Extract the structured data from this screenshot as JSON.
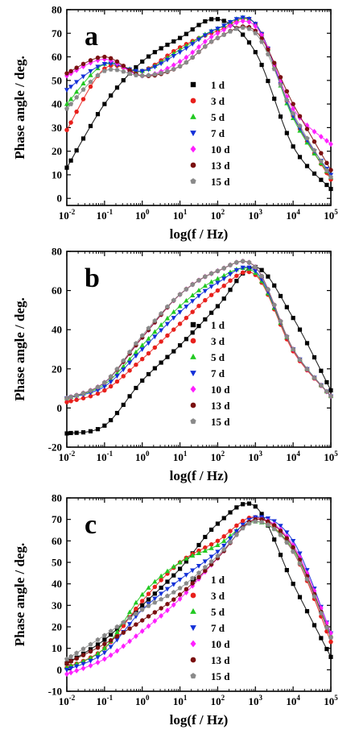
{
  "chart_data": [
    {
      "type": "scatter",
      "panel_label": "a",
      "xlabel": "log(f / Hz)",
      "ylabel": "Phase angle / deg.",
      "xscale": "log",
      "xlim": [
        0.01,
        100000
      ],
      "ylim": [
        -3,
        80
      ],
      "yticks": [
        0,
        10,
        20,
        30,
        40,
        50,
        60,
        70,
        80
      ],
      "xticks": [
        0.01,
        0.1,
        1,
        10,
        100,
        1000,
        10000,
        100000
      ],
      "xtick_labels": [
        "10-2",
        "10-1",
        "100",
        "101",
        "102",
        "103",
        "104",
        "105"
      ],
      "legend_position": "center-right",
      "grid": false,
      "series": [
        {
          "name": "1 d",
          "color": "#000000",
          "marker": "square",
          "x": [
            0.01,
            0.1,
            1,
            10,
            100,
            1000,
            10000,
            100000
          ],
          "y": [
            13,
            40,
            58,
            68,
            76,
            62,
            22,
            4
          ]
        },
        {
          "name": "3 d",
          "color": "#e8201c",
          "marker": "circle",
          "x": [
            0.01,
            0.1,
            1,
            10,
            100,
            1000,
            10000,
            100000
          ],
          "y": [
            29,
            55,
            54,
            64,
            71,
            74,
            35,
            8
          ]
        },
        {
          "name": "5 d",
          "color": "#22c922",
          "marker": "triangle-up",
          "x": [
            0.01,
            0.1,
            1,
            10,
            100,
            1000,
            10000,
            100000
          ],
          "y": [
            40,
            57,
            54,
            63,
            72,
            74,
            34,
            9
          ]
        },
        {
          "name": "7 d",
          "color": "#1330d8",
          "marker": "triangle-down",
          "x": [
            0.01,
            0.1,
            1,
            10,
            100,
            1000,
            10000,
            100000
          ],
          "y": [
            46,
            57,
            54,
            62,
            72,
            74,
            35,
            10
          ]
        },
        {
          "name": "10 d",
          "color": "#ff1fff",
          "marker": "diamond",
          "x": [
            0.01,
            0.1,
            1,
            10,
            100,
            1000,
            10000,
            100000
          ],
          "y": [
            52,
            59,
            52,
            58,
            70,
            73,
            38,
            23
          ]
        },
        {
          "name": "13 d",
          "color": "#7a1010",
          "marker": "circle",
          "x": [
            0.01,
            0.1,
            1,
            10,
            100,
            1000,
            10000,
            100000
          ],
          "y": [
            53,
            60,
            52,
            56,
            68,
            71,
            40,
            12
          ]
        },
        {
          "name": "15 d",
          "color": "#8a8a8a",
          "marker": "pentagon",
          "x": [
            0.01,
            0.1,
            1,
            10,
            100,
            1000,
            10000,
            100000
          ],
          "y": [
            38,
            54,
            52,
            56,
            68,
            70,
            36,
            9
          ]
        }
      ]
    },
    {
      "type": "scatter",
      "panel_label": "b",
      "xlabel": "log(f / Hz)",
      "ylabel": "Phase angle / deg.",
      "xscale": "log",
      "xlim": [
        0.01,
        100000
      ],
      "ylim": [
        -20,
        80
      ],
      "yticks": [
        -20,
        0,
        20,
        40,
        60,
        80
      ],
      "xticks": [
        0.01,
        0.1,
        1,
        10,
        100,
        1000,
        10000,
        100000
      ],
      "xtick_labels": [
        "10-2",
        "10-1",
        "100",
        "101",
        "102",
        "103",
        "104",
        "105"
      ],
      "legend_position": "center-right",
      "grid": false,
      "series": [
        {
          "name": "1 d",
          "color": "#000000",
          "marker": "square",
          "x": [
            0.01,
            0.1,
            1,
            10,
            100,
            1000,
            10000,
            100000
          ],
          "y": [
            -13,
            -9,
            14,
            32,
            52,
            72,
            46,
            9
          ]
        },
        {
          "name": "3 d",
          "color": "#e8201c",
          "marker": "circle",
          "x": [
            0.01,
            0.1,
            1,
            10,
            100,
            1000,
            10000,
            100000
          ],
          "y": [
            3,
            9,
            25,
            43,
            60,
            68,
            29,
            6
          ]
        },
        {
          "name": "5 d",
          "color": "#22c922",
          "marker": "triangle-up",
          "x": [
            0.01,
            0.1,
            1,
            10,
            100,
            1000,
            10000,
            100000
          ],
          "y": [
            5,
            12,
            32,
            52,
            66,
            69,
            30,
            6
          ]
        },
        {
          "name": "7 d",
          "color": "#1330d8",
          "marker": "triangle-down",
          "x": [
            0.01,
            0.1,
            1,
            10,
            100,
            1000,
            10000,
            100000
          ],
          "y": [
            5,
            11,
            30,
            49,
            64,
            70,
            30,
            6
          ]
        },
        {
          "name": "10 d",
          "color": "#ff1fff",
          "marker": "diamond",
          "x": [
            0.01,
            0.1,
            1,
            10,
            100,
            1000,
            10000,
            100000
          ],
          "y": [
            5,
            13,
            36,
            58,
            70,
            72,
            30,
            6
          ]
        },
        {
          "name": "13 d",
          "color": "#7a1010",
          "marker": "circle",
          "x": [
            0.01,
            0.1,
            1,
            10,
            100,
            1000,
            10000,
            100000
          ],
          "y": [
            5,
            13,
            36,
            58,
            70,
            72,
            30,
            6
          ]
        },
        {
          "name": "15 d",
          "color": "#8a8a8a",
          "marker": "pentagon",
          "x": [
            0.01,
            0.1,
            1,
            10,
            100,
            1000,
            10000,
            100000
          ],
          "y": [
            5,
            13,
            37,
            58,
            70,
            72,
            30,
            6
          ]
        }
      ]
    },
    {
      "type": "scatter",
      "panel_label": "c",
      "xlabel": "log(f / Hz)",
      "ylabel": "Phase angle / deg.",
      "xscale": "log",
      "xlim": [
        0.01,
        100000
      ],
      "ylim": [
        -10,
        80
      ],
      "yticks": [
        -10,
        0,
        10,
        20,
        30,
        40,
        50,
        60,
        70,
        80
      ],
      "xticks": [
        0.01,
        0.1,
        1,
        10,
        100,
        1000,
        10000,
        100000
      ],
      "xtick_labels": [
        "10-2",
        "10-1",
        "100",
        "101",
        "102",
        "103",
        "104",
        "105"
      ],
      "legend_position": "center-right",
      "grid": false,
      "series": [
        {
          "name": "1 d",
          "color": "#000000",
          "marker": "square",
          "x": [
            0.01,
            0.1,
            1,
            10,
            100,
            1000,
            10000,
            100000
          ],
          "y": [
            3,
            14,
            30,
            47,
            68,
            76,
            40,
            6
          ]
        },
        {
          "name": "3 d",
          "color": "#e8201c",
          "marker": "circle",
          "x": [
            0.01,
            0.1,
            1,
            10,
            100,
            1000,
            10000,
            100000
          ],
          "y": [
            1,
            10,
            32,
            50,
            60,
            71,
            55,
            13
          ]
        },
        {
          "name": "5 d",
          "color": "#22c922",
          "marker": "triangle-up",
          "x": [
            0.01,
            0.1,
            1,
            10,
            100,
            1000,
            10000,
            100000
          ],
          "y": [
            1,
            10,
            35,
            50,
            58,
            69,
            56,
            16
          ]
        },
        {
          "name": "7 d",
          "color": "#1330d8",
          "marker": "triangle-down",
          "x": [
            0.01,
            0.1,
            1,
            10,
            100,
            1000,
            10000,
            100000
          ],
          "y": [
            0,
            8,
            28,
            42,
            55,
            71,
            60,
            17
          ]
        },
        {
          "name": "10 d",
          "color": "#ff1fff",
          "marker": "diamond",
          "x": [
            0.01,
            0.1,
            1,
            10,
            100,
            1000,
            10000,
            100000
          ],
          "y": [
            -2,
            5,
            18,
            33,
            52,
            70,
            58,
            17
          ]
        },
        {
          "name": "13 d",
          "color": "#7a1010",
          "marker": "circle",
          "x": [
            0.01,
            0.1,
            1,
            10,
            100,
            1000,
            10000,
            100000
          ],
          "y": [
            3,
            12,
            23,
            35,
            52,
            70,
            57,
            15
          ]
        },
        {
          "name": "15 d",
          "color": "#8a8a8a",
          "marker": "pentagon",
          "x": [
            0.01,
            0.1,
            1,
            10,
            100,
            1000,
            10000,
            100000
          ],
          "y": [
            5,
            16,
            28,
            38,
            53,
            69,
            55,
            15
          ]
        }
      ]
    }
  ]
}
